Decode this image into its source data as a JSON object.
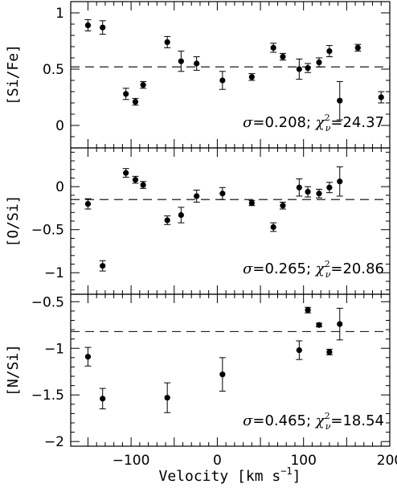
{
  "chart_data": {
    "type": "scatter",
    "xlabel": "Velocity [km s",
    "xlabel_sup": "−1",
    "xlabel_close": "]",
    "xlim": [
      -170,
      200
    ],
    "xticks": [
      -100,
      0,
      100,
      200
    ],
    "xticklabels": [
      "−100",
      "0",
      "100",
      "200"
    ],
    "panels": [
      {
        "ylabel": "[Si/Fe]",
        "ylim": [
          -0.2,
          1.1
        ],
        "yticks": [
          0,
          0.5,
          1
        ],
        "yticklabels": [
          "0",
          "0.5",
          "1"
        ],
        "mean_line": 0.52,
        "stat_sigma": "=0.208;",
        "stat_chi": "=24.37",
        "points": [
          {
            "x": -150,
            "y": 0.89,
            "err": 0.05
          },
          {
            "x": -133,
            "y": 0.87,
            "err": 0.06
          },
          {
            "x": -106,
            "y": 0.28,
            "err": 0.05
          },
          {
            "x": -95,
            "y": 0.21,
            "err": 0.03
          },
          {
            "x": -86,
            "y": 0.36,
            "err": 0.03
          },
          {
            "x": -58,
            "y": 0.74,
            "err": 0.05
          },
          {
            "x": -42,
            "y": 0.57,
            "err": 0.09
          },
          {
            "x": -24,
            "y": 0.55,
            "err": 0.06
          },
          {
            "x": 6,
            "y": 0.4,
            "err": 0.08
          },
          {
            "x": 40,
            "y": 0.43,
            "err": 0.03
          },
          {
            "x": 65,
            "y": 0.69,
            "err": 0.04
          },
          {
            "x": 76,
            "y": 0.61,
            "err": 0.03
          },
          {
            "x": 95,
            "y": 0.5,
            "err": 0.09
          },
          {
            "x": 105,
            "y": 0.51,
            "err": 0.04
          },
          {
            "x": 118,
            "y": 0.56,
            "err": 0.04
          },
          {
            "x": 130,
            "y": 0.66,
            "err": 0.05
          },
          {
            "x": 142,
            "y": 0.22,
            "err": 0.17
          },
          {
            "x": 163,
            "y": 0.69,
            "err": 0.03
          },
          {
            "x": 190,
            "y": 0.25,
            "err": 0.05
          }
        ]
      },
      {
        "ylabel": "[O/Si]",
        "ylim": [
          -1.25,
          0.45
        ],
        "yticks": [
          -1,
          -0.5,
          0
        ],
        "yticklabels": [
          "−1",
          "−0.5",
          "0"
        ],
        "mean_line": -0.15,
        "stat_sigma": "=0.265;",
        "stat_chi": "=20.86",
        "points": [
          {
            "x": -150,
            "y": -0.2,
            "err": 0.06
          },
          {
            "x": -133,
            "y": -0.92,
            "err": 0.06
          },
          {
            "x": -106,
            "y": 0.16,
            "err": 0.05
          },
          {
            "x": -95,
            "y": 0.08,
            "err": 0.04
          },
          {
            "x": -86,
            "y": 0.02,
            "err": 0.04
          },
          {
            "x": -58,
            "y": -0.39,
            "err": 0.05
          },
          {
            "x": -42,
            "y": -0.33,
            "err": 0.09
          },
          {
            "x": -24,
            "y": -0.11,
            "err": 0.07
          },
          {
            "x": 6,
            "y": -0.08,
            "err": 0.07
          },
          {
            "x": 40,
            "y": -0.19,
            "err": 0.03
          },
          {
            "x": 65,
            "y": -0.47,
            "err": 0.05
          },
          {
            "x": 76,
            "y": -0.22,
            "err": 0.04
          },
          {
            "x": 95,
            "y": -0.01,
            "err": 0.1
          },
          {
            "x": 105,
            "y": -0.06,
            "err": 0.06
          },
          {
            "x": 118,
            "y": -0.08,
            "err": 0.05
          },
          {
            "x": 130,
            "y": -0.01,
            "err": 0.06
          },
          {
            "x": 142,
            "y": 0.06,
            "err": 0.17
          }
        ]
      },
      {
        "ylabel": "[N/Si]",
        "ylim": [
          -2.05,
          -0.42
        ],
        "yticks": [
          -2,
          -1.5,
          -1,
          -0.5
        ],
        "yticklabels": [
          "−2",
          "−1.5",
          "−1",
          "−0.5"
        ],
        "mean_line": -0.82,
        "stat_sigma": "=0.465;",
        "stat_chi": "=18.54",
        "points": [
          {
            "x": -150,
            "y": -1.09,
            "err": 0.1
          },
          {
            "x": -133,
            "y": -1.54,
            "err": 0.11
          },
          {
            "x": -58,
            "y": -1.53,
            "err": 0.16
          },
          {
            "x": 6,
            "y": -1.28,
            "err": 0.18
          },
          {
            "x": 95,
            "y": -1.02,
            "err": 0.1
          },
          {
            "x": 105,
            "y": -0.59,
            "err": 0.03
          },
          {
            "x": 118,
            "y": -0.75,
            "err": 0.02
          },
          {
            "x": 130,
            "y": -1.04,
            "err": 0.03
          },
          {
            "x": 142,
            "y": -0.74,
            "err": 0.17
          }
        ]
      }
    ]
  }
}
